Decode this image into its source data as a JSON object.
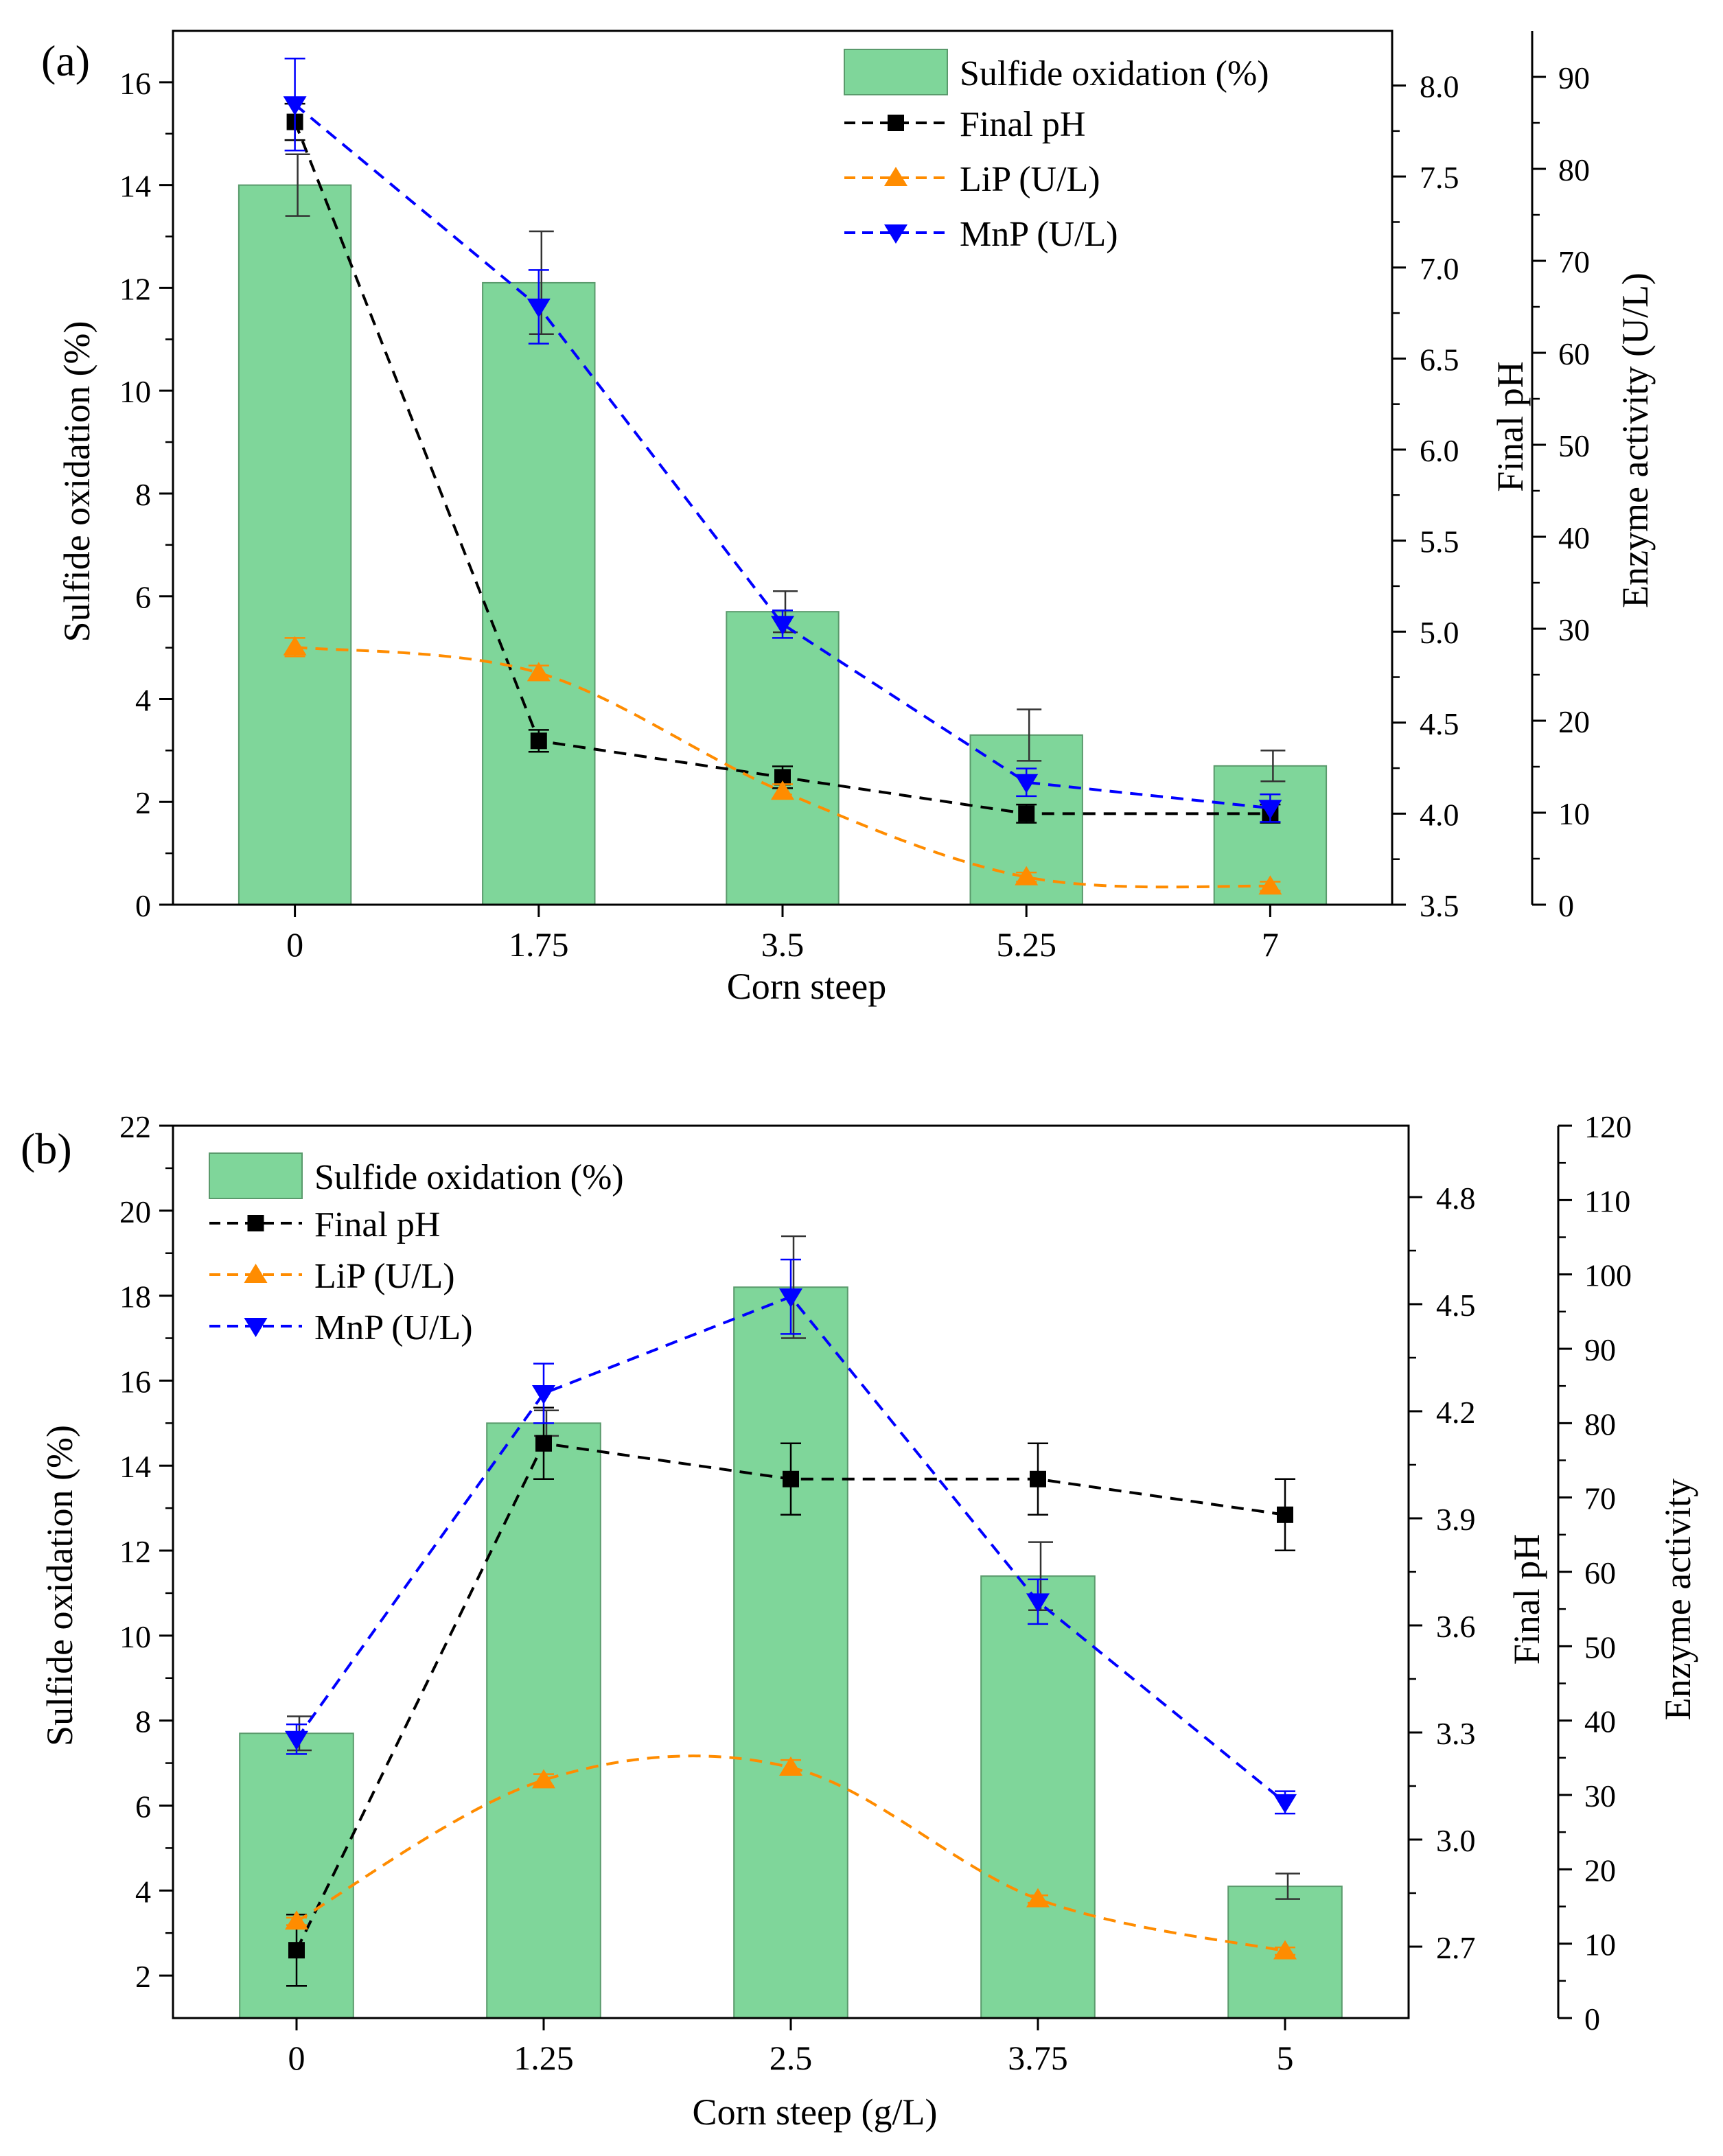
{
  "colors": {
    "bar_fill": "#7fd69a",
    "bar_stroke": "#5a9a6c",
    "final_ph": "#000000",
    "lip": "#ff8c00",
    "mnp": "#0000ff",
    "axis": "#000000"
  },
  "chart_data": [
    {
      "panel_label": "(a)",
      "type": "bar",
      "categories": [
        "0",
        "1.75",
        "3.5",
        "5.25",
        "7"
      ],
      "xlabel": "Corn steep",
      "axes": {
        "left": {
          "label": "Sulfide oxidation (%)",
          "min": 0,
          "max": 17,
          "ticks": [
            0,
            2,
            4,
            6,
            8,
            10,
            12,
            14,
            16
          ],
          "tick_labels": [
            "0",
            "2",
            "4",
            "6",
            "8",
            "10",
            "12",
            "14",
            "16"
          ]
        },
        "right1": {
          "label": "Final pH",
          "min": 3.5,
          "max": 8.3,
          "ticks": [
            3.5,
            4.0,
            4.5,
            5.0,
            5.5,
            6.0,
            6.5,
            7.0,
            7.5,
            8.0
          ],
          "tick_labels": [
            "3.5",
            "4.0",
            "4.5",
            "5.0",
            "5.5",
            "6.0",
            "6.5",
            "7.0",
            "7.5",
            "8.0"
          ]
        },
        "right2": {
          "label": "Enzyme activity (U/L)",
          "min": 0,
          "max": 95,
          "ticks": [
            0,
            10,
            20,
            30,
            40,
            50,
            60,
            70,
            80,
            90
          ],
          "tick_labels": [
            "0",
            "10",
            "20",
            "30",
            "40",
            "50",
            "60",
            "70",
            "80",
            "90"
          ]
        }
      },
      "legend": {
        "position": "top-right",
        "entries": [
          "Sulfide oxidation (%)",
          "Final pH",
          "LiP (U/L)",
          "MnP (U/L)"
        ]
      },
      "series": [
        {
          "name": "Sulfide oxidation (%)",
          "kind": "bar",
          "axis": "left",
          "values": [
            14.0,
            12.1,
            5.7,
            3.3,
            2.7
          ],
          "errors": [
            0.6,
            1.0,
            0.4,
            0.5,
            0.3
          ]
        },
        {
          "name": "Final pH",
          "kind": "line",
          "marker": "square",
          "axis": "right1",
          "values": [
            7.8,
            4.4,
            4.2,
            4.0,
            4.0
          ],
          "errors": [
            0.1,
            0.06,
            0.06,
            0.05,
            0.05
          ]
        },
        {
          "name": "LiP (U/L)",
          "kind": "line",
          "marker": "triangle-up",
          "axis": "right2",
          "values": [
            28,
            25.2,
            12.3,
            3,
            2
          ],
          "errors": [
            1,
            0.8,
            0.8,
            0.5,
            0.5
          ]
        },
        {
          "name": "MnP (U/L)",
          "kind": "line",
          "marker": "triangle-down",
          "axis": "right2",
          "values": [
            87,
            65,
            30.5,
            13.3,
            10.5
          ],
          "errors": [
            5,
            4,
            1.5,
            1.5,
            1.5
          ]
        }
      ]
    },
    {
      "panel_label": "(b)",
      "type": "bar",
      "categories": [
        "0",
        "1.25",
        "2.5",
        "3.75",
        "5"
      ],
      "xlabel": "Corn steep (g/L)",
      "axes": {
        "left": {
          "label": "Sulfide oxidation (%)",
          "min": 1,
          "max": 22,
          "ticks": [
            2,
            4,
            6,
            8,
            10,
            12,
            14,
            16,
            18,
            20,
            22
          ],
          "tick_labels": [
            "2",
            "4",
            "6",
            "8",
            "10",
            "12",
            "14",
            "16",
            "18",
            "20",
            "22"
          ]
        },
        "right1": {
          "label": "Final pH",
          "min": 2.5,
          "max": 5.0,
          "ticks": [
            2.7,
            3.0,
            3.3,
            3.6,
            3.9,
            4.2,
            4.5,
            4.8
          ],
          "tick_labels": [
            "2.7",
            "3.0",
            "3.3",
            "3.6",
            "3.9",
            "4.2",
            "4.5",
            "4.8"
          ]
        },
        "right2": {
          "label": "Enzyme activity",
          "min": 0,
          "max": 120,
          "ticks": [
            0,
            10,
            20,
            30,
            40,
            50,
            60,
            70,
            80,
            90,
            100,
            110,
            120
          ],
          "tick_labels": [
            "0",
            "10",
            "20",
            "30",
            "40",
            "50",
            "60",
            "70",
            "80",
            "90",
            "100",
            "110",
            "120"
          ]
        }
      },
      "legend": {
        "position": "top-left",
        "entries": [
          "Sulfide oxidation (%)",
          "Final pH",
          "LiP (U/L)",
          "MnP (U/L)"
        ]
      },
      "series": [
        {
          "name": "Sulfide oxidation (%)",
          "kind": "bar",
          "axis": "left",
          "values": [
            7.7,
            15.0,
            18.2,
            11.4,
            4.1
          ],
          "errors": [
            0.4,
            0.3,
            1.2,
            0.8,
            0.3
          ]
        },
        {
          "name": "Final pH",
          "kind": "line",
          "marker": "square",
          "axis": "right1",
          "values": [
            2.69,
            4.11,
            4.01,
            4.01,
            3.91
          ],
          "errors": [
            0.1,
            0.1,
            0.1,
            0.1,
            0.1
          ]
        },
        {
          "name": "LiP (U/L)",
          "kind": "line",
          "marker": "triangle-up",
          "axis": "right2",
          "values": [
            13,
            32,
            33.7,
            16,
            9
          ],
          "errors": [
            0.5,
            0.8,
            1,
            0.5,
            0.5
          ]
        },
        {
          "name": "MnP (U/L)",
          "kind": "line",
          "marker": "triangle-down",
          "axis": "right2",
          "values": [
            37.5,
            84,
            97,
            56,
            29
          ],
          "errors": [
            2,
            4,
            5,
            3,
            1.5
          ]
        }
      ]
    }
  ]
}
